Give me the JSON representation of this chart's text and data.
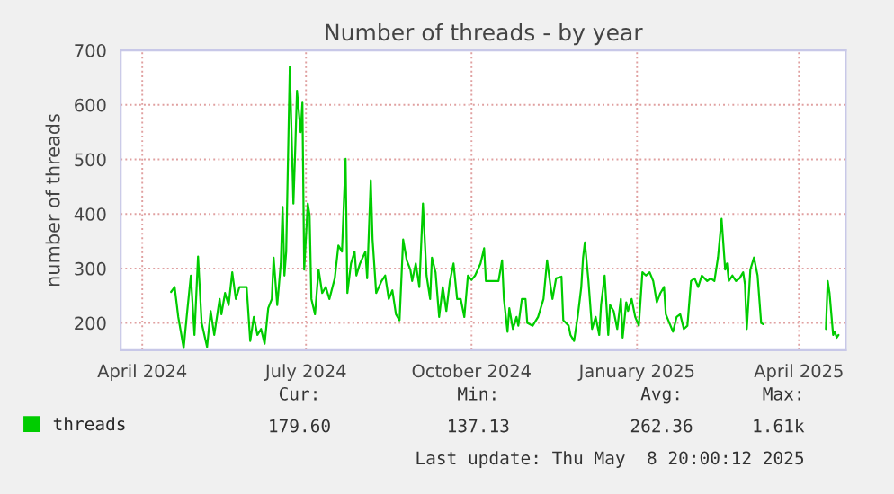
{
  "chart_data": {
    "type": "line",
    "title": "Number of threads - by year",
    "ylabel": "number of threads",
    "x": [
      "2024-04-17",
      "2024-04-19",
      "2024-04-21",
      "2024-04-24",
      "2024-04-26",
      "2024-04-28",
      "2024-04-30",
      "2024-05-02",
      "2024-05-04",
      "2024-05-07",
      "2024-05-09",
      "2024-05-11",
      "2024-05-14",
      "2024-05-15",
      "2024-05-17",
      "2024-05-19",
      "2024-05-21",
      "2024-05-23",
      "2024-05-25",
      "2024-05-27",
      "2024-05-29",
      "2024-05-31",
      "2024-06-02",
      "2024-06-04",
      "2024-06-06",
      "2024-06-08",
      "2024-06-10",
      "2024-06-12",
      "2024-06-13",
      "2024-06-15",
      "2024-06-17",
      "2024-06-18",
      "2024-06-19",
      "2024-06-20",
      "2024-06-22",
      "2024-06-24",
      "2024-06-25",
      "2024-06-26",
      "2024-06-28",
      "2024-06-29",
      "2024-06-30",
      "2024-07-02",
      "2024-07-03",
      "2024-07-04",
      "2024-07-06",
      "2024-07-08",
      "2024-07-10",
      "2024-07-12",
      "2024-07-14",
      "2024-07-17",
      "2024-07-19",
      "2024-07-21",
      "2024-07-23",
      "2024-07-24",
      "2024-07-26",
      "2024-07-28",
      "2024-07-29",
      "2024-07-31",
      "2024-08-03",
      "2024-08-04",
      "2024-08-06",
      "2024-08-07",
      "2024-08-09",
      "2024-08-12",
      "2024-08-14",
      "2024-08-16",
      "2024-08-18",
      "2024-08-20",
      "2024-08-22",
      "2024-08-24",
      "2024-08-26",
      "2024-08-28",
      "2024-08-29",
      "2024-08-31",
      "2024-09-02",
      "2024-09-04",
      "2024-09-06",
      "2024-09-08",
      "2024-09-09",
      "2024-09-11",
      "2024-09-13",
      "2024-09-15",
      "2024-09-17",
      "2024-09-19",
      "2024-09-21",
      "2024-09-23",
      "2024-09-25",
      "2024-09-27",
      "2024-09-29",
      "2024-10-01",
      "2024-10-03",
      "2024-10-06",
      "2024-10-08",
      "2024-10-09",
      "2024-10-13",
      "2024-10-16",
      "2024-10-18",
      "2024-10-19",
      "2024-10-21",
      "2024-10-22",
      "2024-10-24",
      "2024-10-26",
      "2024-10-27",
      "2024-10-29",
      "2024-10-31",
      "2024-11-01",
      "2024-11-04",
      "2024-11-07",
      "2024-11-10",
      "2024-11-12",
      "2024-11-14",
      "2024-11-15",
      "2024-11-17",
      "2024-11-20",
      "2024-11-21",
      "2024-11-24",
      "2024-11-25",
      "2024-11-27",
      "2024-11-29",
      "2024-12-01",
      "2024-12-02",
      "2024-12-03",
      "2024-12-05",
      "2024-12-07",
      "2024-12-09",
      "2024-12-11",
      "2024-12-12",
      "2024-12-14",
      "2024-12-16",
      "2024-12-17",
      "2024-12-19",
      "2024-12-21",
      "2024-12-23",
      "2024-12-24",
      "2024-12-26",
      "2024-12-27",
      "2024-12-29",
      "2024-12-31",
      "2025-01-02",
      "2025-01-04",
      "2025-01-06",
      "2025-01-08",
      "2025-01-10",
      "2025-01-12",
      "2025-01-14",
      "2025-01-16",
      "2025-01-17",
      "2025-01-19",
      "2025-01-21",
      "2025-01-23",
      "2025-01-25",
      "2025-01-27",
      "2025-01-29",
      "2025-01-31",
      "2025-02-02",
      "2025-02-04",
      "2025-02-06",
      "2025-02-09",
      "2025-02-11",
      "2025-02-13",
      "2025-02-15",
      "2025-02-17",
      "2025-02-19",
      "2025-02-20",
      "2025-02-21",
      "2025-02-23",
      "2025-02-25",
      "2025-02-27",
      "2025-03-01",
      "2025-03-02",
      "2025-03-03",
      "2025-03-05",
      "2025-03-07",
      "2025-03-09",
      "2025-03-11",
      "2025-03-12",
      "2025-03-20",
      "2025-04-16",
      "2025-04-17",
      "2025-04-18",
      "2025-04-20",
      "2025-04-21",
      "2025-04-22",
      "2025-04-23"
    ],
    "series": [
      {
        "name": "threads",
        "color": "#00cc00",
        "values": [
          257,
          266,
          211,
          154,
          222,
          287,
          178,
          322,
          200,
          156,
          222,
          178,
          244,
          216,
          255,
          233,
          293,
          244,
          266,
          266,
          266,
          167,
          211,
          178,
          189,
          162,
          227,
          244,
          320,
          233,
          309,
          413,
          287,
          331,
          670,
          419,
          517,
          626,
          550,
          604,
          298,
          419,
          397,
          244,
          216,
          298,
          255,
          266,
          244,
          282,
          342,
          331,
          501,
          255,
          309,
          331,
          287,
          309,
          331,
          282,
          462,
          353,
          255,
          277,
          287,
          244,
          260,
          216,
          205,
          353,
          315,
          298,
          277,
          309,
          266,
          419,
          287,
          244,
          320,
          293,
          211,
          266,
          222,
          277,
          309,
          244,
          244,
          211,
          287,
          279,
          287,
          309,
          337,
          277,
          277,
          277,
          315,
          244,
          184,
          227,
          189,
          211,
          195,
          244,
          244,
          200,
          195,
          211,
          244,
          315,
          266,
          244,
          282,
          285,
          205,
          195,
          178,
          167,
          211,
          266,
          320,
          348,
          277,
          189,
          211,
          178,
          233,
          287,
          178,
          233,
          222,
          189,
          244,
          173,
          238,
          222,
          244,
          211,
          195,
          293,
          287,
          293,
          277,
          238,
          255,
          266,
          216,
          200,
          184,
          211,
          216,
          189,
          195,
          277,
          282,
          266,
          287,
          277,
          282,
          277,
          320,
          391,
          298,
          309,
          277,
          287,
          277,
          282,
          293,
          271,
          189,
          298,
          320,
          287,
          200,
          198,
          null,
          189,
          277,
          255,
          178,
          184,
          173,
          178
        ]
      }
    ],
    "xlim": [
      "2024-03-20",
      "2025-04-27"
    ],
    "xticks": [
      {
        "value": "2024-04-01",
        "label": "April 2024"
      },
      {
        "value": "2024-07-01",
        "label": "July 2024"
      },
      {
        "value": "2024-10-01",
        "label": "October 2024"
      },
      {
        "value": "2025-01-01",
        "label": "January 2025"
      },
      {
        "value": "2025-04-01",
        "label": "April 2025"
      }
    ],
    "ylim": [
      150,
      700
    ],
    "yticks": [
      200,
      300,
      400,
      500,
      600,
      700
    ],
    "grid": true,
    "legend": "bottom",
    "annotations": [
      "Cur:",
      "Min:",
      "Avg:",
      "Max:",
      "179.60",
      "137.13",
      "262.36",
      "1.61k",
      "Last update: Thu May  8 20:00:12 2025"
    ]
  }
}
